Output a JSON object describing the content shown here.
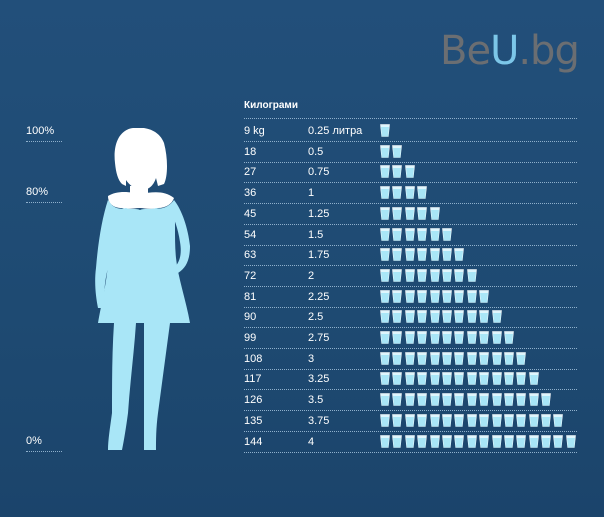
{
  "logo": {
    "part1": "Be",
    "part2": "U",
    "part3": ".bg"
  },
  "percent_labels": [
    "100%",
    "80%",
    "0%"
  ],
  "table": {
    "header": "Килограми",
    "rows": [
      {
        "kg": "9 kg",
        "liters": "0.25 литра",
        "glasses": 1
      },
      {
        "kg": "18",
        "liters": "0.5",
        "glasses": 2
      },
      {
        "kg": "27",
        "liters": "0.75",
        "glasses": 3
      },
      {
        "kg": "36",
        "liters": "1",
        "glasses": 4
      },
      {
        "kg": "45",
        "liters": "1.25",
        "glasses": 5
      },
      {
        "kg": "54",
        "liters": "1.5",
        "glasses": 6
      },
      {
        "kg": "63",
        "liters": "1.75",
        "glasses": 7
      },
      {
        "kg": "72",
        "liters": "2",
        "glasses": 8
      },
      {
        "kg": "81",
        "liters": "2.25",
        "glasses": 9
      },
      {
        "kg": "90",
        "liters": "2.5",
        "glasses": 10
      },
      {
        "kg": "99",
        "liters": "2.75",
        "glasses": 11
      },
      {
        "kg": "108",
        "liters": "3",
        "glasses": 12
      },
      {
        "kg": "117",
        "liters": "3.25",
        "glasses": 13
      },
      {
        "kg": "126",
        "liters": "3.5",
        "glasses": 14
      },
      {
        "kg": "135",
        "liters": "3.75",
        "glasses": 15
      },
      {
        "kg": "144",
        "liters": "4",
        "glasses": 16
      }
    ]
  },
  "colors": {
    "background": "#1f4a73",
    "water": "#a9e6f7",
    "body": "#ffffff"
  },
  "icon": "water-glass-icon"
}
